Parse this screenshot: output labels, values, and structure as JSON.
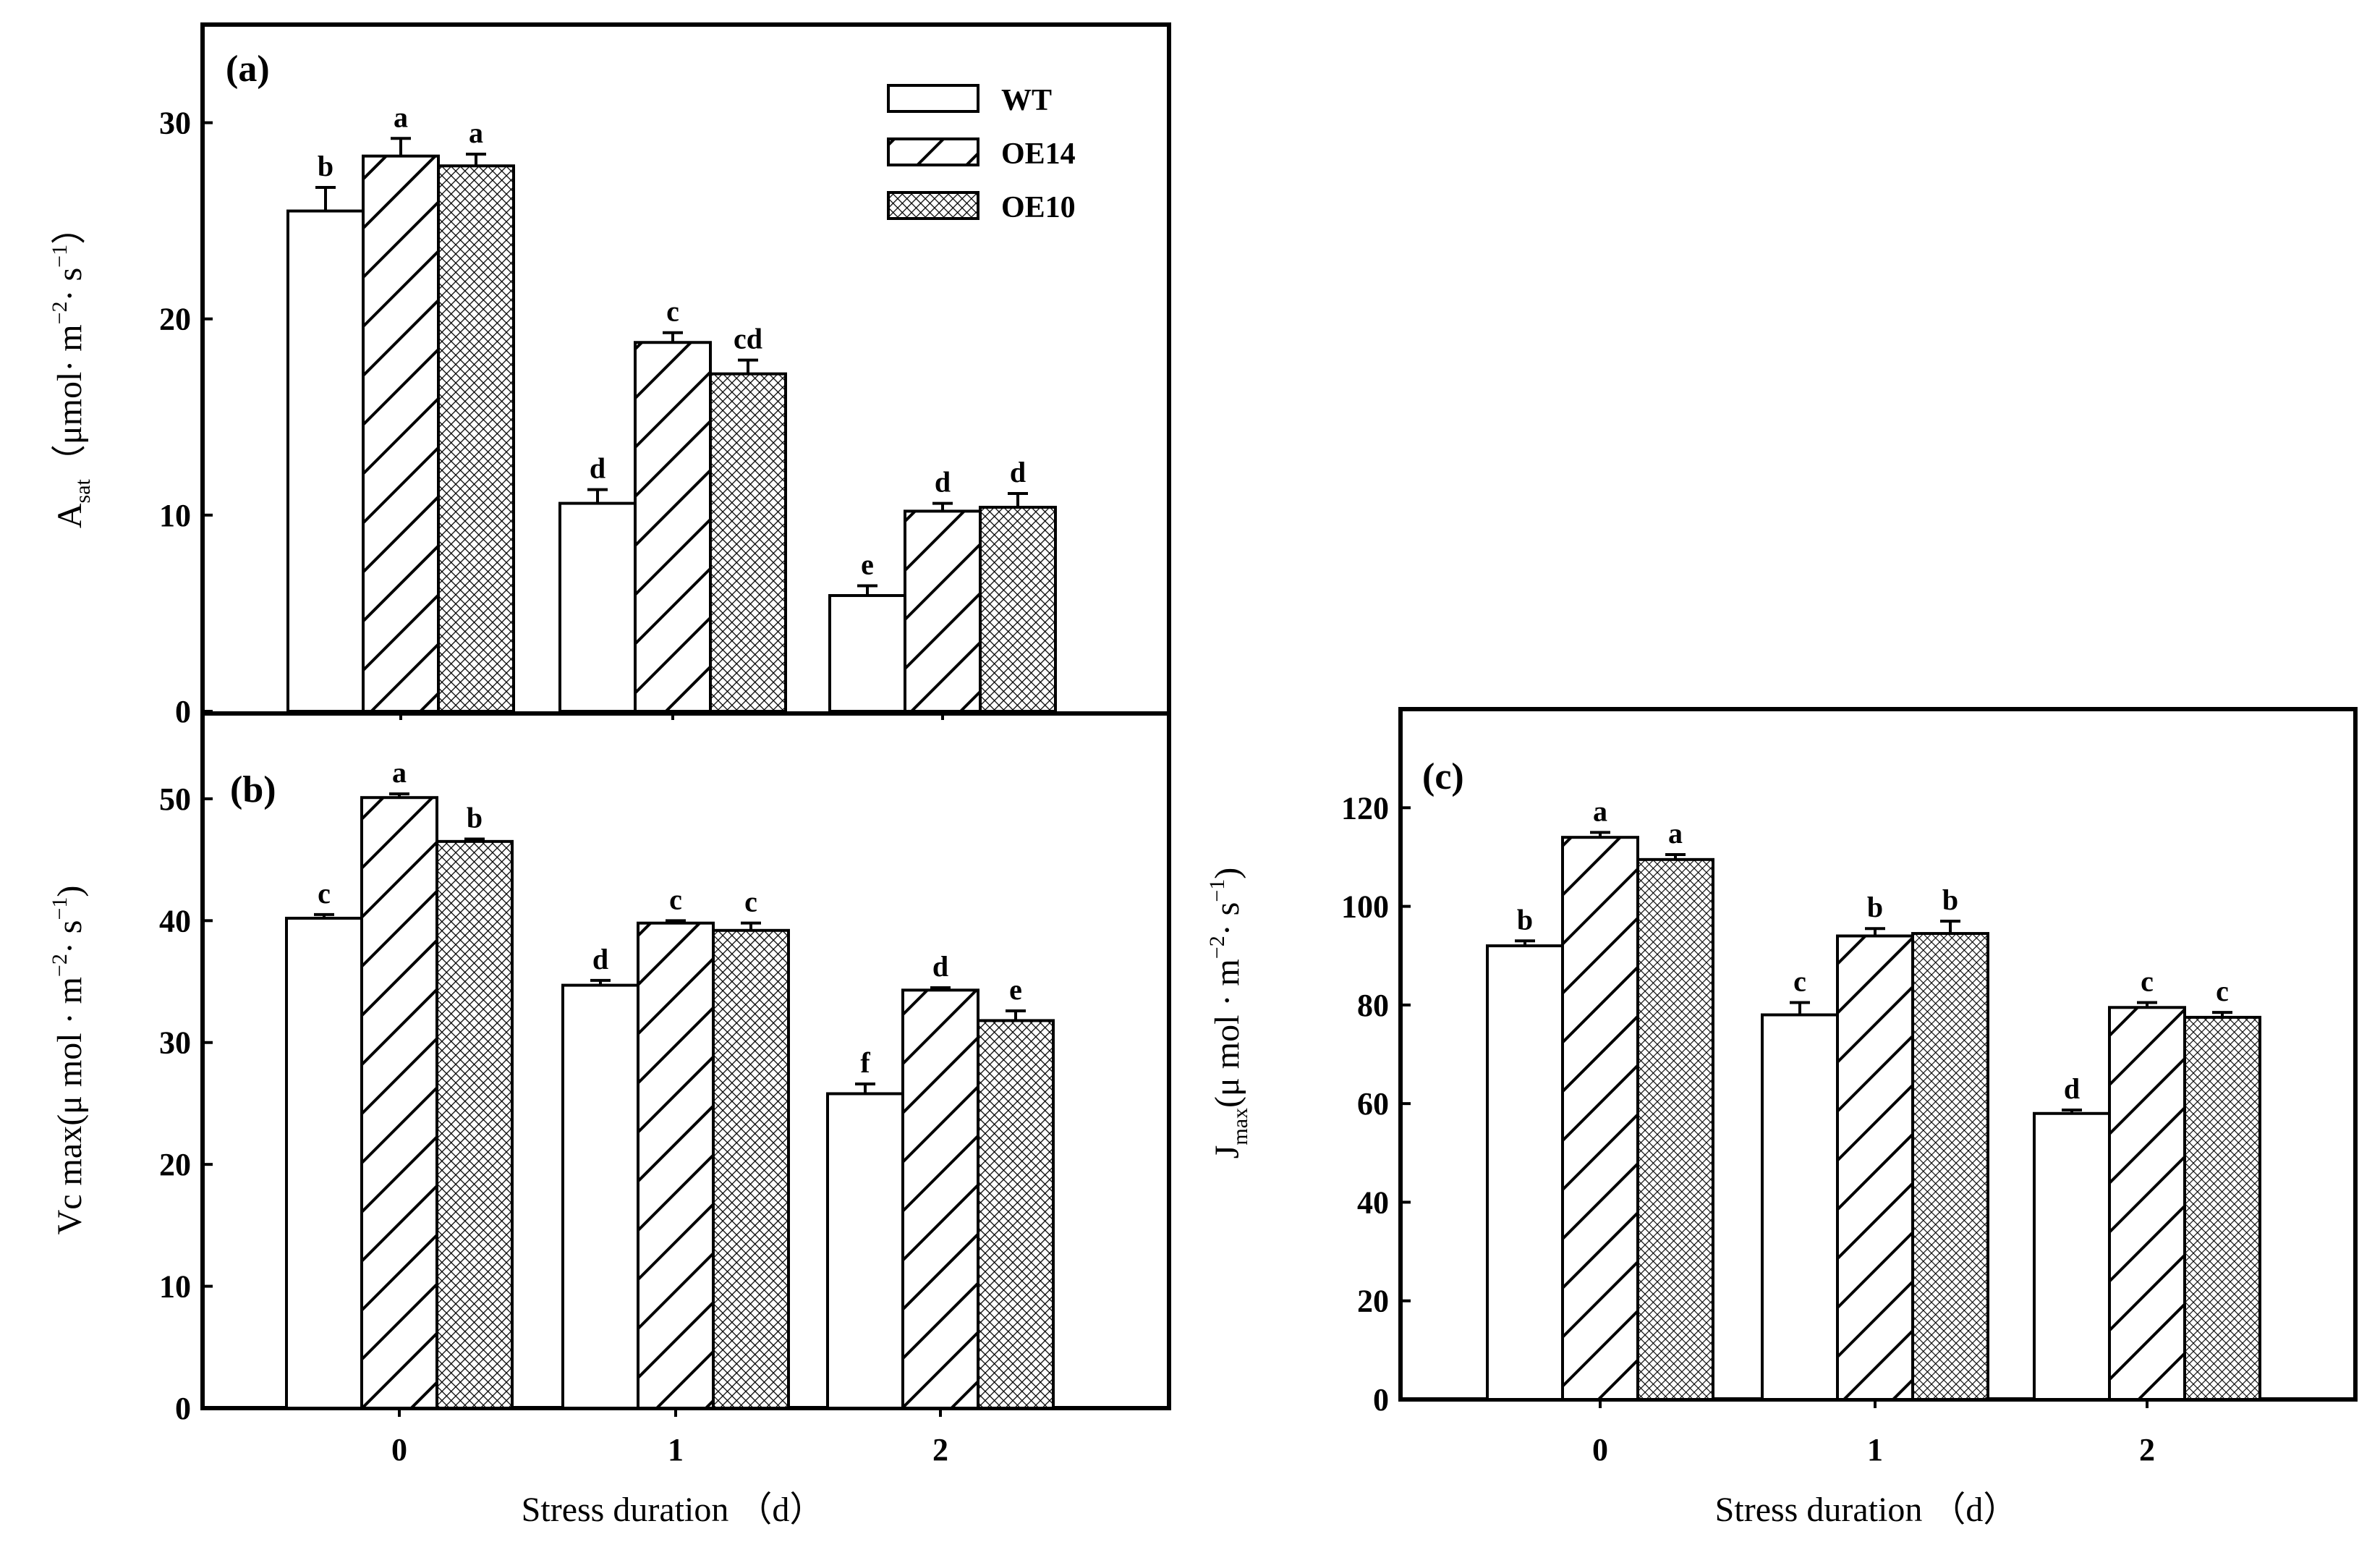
{
  "chart_data": [
    {
      "panel": "(a)",
      "type": "bar",
      "categories": [
        "0",
        "1",
        "2"
      ],
      "series": [
        {
          "name": "WT",
          "pattern": "open",
          "values": [
            25.5,
            10.6,
            5.9
          ],
          "errors": [
            1.2,
            0.7,
            0.5
          ],
          "letters": [
            "b",
            "d",
            "e"
          ]
        },
        {
          "name": "OE14",
          "pattern": "hatch",
          "values": [
            28.3,
            18.8,
            10.2
          ],
          "errors": [
            0.9,
            0.5,
            0.4
          ],
          "letters": [
            "a",
            "c",
            "d"
          ]
        },
        {
          "name": "OE10",
          "pattern": "cross",
          "values": [
            27.8,
            17.2,
            10.4
          ],
          "errors": [
            0.6,
            0.7,
            0.7
          ],
          "letters": [
            "a",
            "cd",
            "d"
          ]
        }
      ],
      "ylim": [
        0,
        35
      ],
      "yticks": [
        0,
        10,
        20,
        30
      ],
      "ylabel_main": "A",
      "ylabel_sub": "sat",
      "ylabel_rest": "（μmol· m",
      "ylabel_sup": "−2",
      "ylabel_tail": "· s",
      "ylabel_sup2": "−1",
      "ylabel_end": "）",
      "legend": [
        "WT",
        "OE14",
        "OE10"
      ]
    },
    {
      "panel": "(b)",
      "type": "bar",
      "categories": [
        "0",
        "1",
        "2"
      ],
      "series": [
        {
          "name": "WT",
          "pattern": "open",
          "values": [
            40.2,
            34.7,
            25.8
          ],
          "errors": [
            0.3,
            0.4,
            0.8
          ],
          "letters": [
            "c",
            "d",
            "f"
          ]
        },
        {
          "name": "OE14",
          "pattern": "hatch",
          "values": [
            50.1,
            39.8,
            34.3
          ],
          "errors": [
            0.3,
            0.2,
            0.2
          ],
          "letters": [
            "a",
            "c",
            "d"
          ]
        },
        {
          "name": "OE10",
          "pattern": "cross",
          "values": [
            46.5,
            39.2,
            31.8
          ],
          "errors": [
            0.2,
            0.6,
            0.8
          ],
          "letters": [
            "b",
            "c",
            "e"
          ]
        }
      ],
      "ylim": [
        0,
        57
      ],
      "yticks": [
        0,
        10,
        20,
        30,
        40,
        50
      ],
      "ylabel_main": "Vc max(μ mol · m",
      "ylabel_sup": "−2",
      "ylabel_tail": "· s",
      "ylabel_sup2": "−1",
      "ylabel_end": ")",
      "xlabel": "Stress duration （d）"
    },
    {
      "panel": "(c)",
      "type": "bar",
      "categories": [
        "0",
        "1",
        "2"
      ],
      "series": [
        {
          "name": "WT",
          "pattern": "open",
          "values": [
            92.0,
            78.0,
            58.0
          ],
          "errors": [
            1.0,
            2.5,
            0.7
          ],
          "letters": [
            "b",
            "c",
            "d"
          ]
        },
        {
          "name": "OE14",
          "pattern": "hatch",
          "values": [
            114.0,
            94.0,
            79.5
          ],
          "errors": [
            1.0,
            1.5,
            1.0
          ],
          "letters": [
            "a",
            "b",
            "c"
          ]
        },
        {
          "name": "OE10",
          "pattern": "dots",
          "values": [
            109.5,
            94.5,
            77.5
          ],
          "errors": [
            1.0,
            2.5,
            1.0
          ],
          "letters": [
            "a",
            "b",
            "c"
          ]
        }
      ],
      "ylim": [
        0,
        140
      ],
      "yticks": [
        0,
        20,
        40,
        60,
        80,
        100,
        120
      ],
      "ylabel_main": "J",
      "ylabel_sub": "max",
      "ylabel_rest": "(μ mol · m",
      "ylabel_sup": "−2",
      "ylabel_tail": "· s",
      "ylabel_sup2": "−1",
      "ylabel_end": ")",
      "xlabel": "Stress  duration  （d）"
    }
  ]
}
